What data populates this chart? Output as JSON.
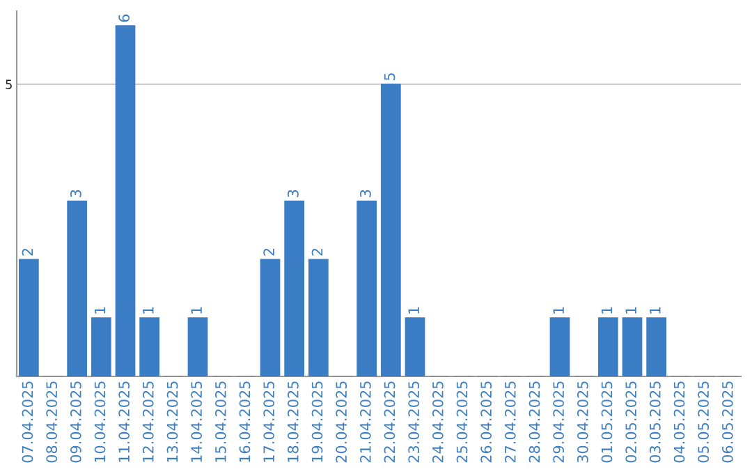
{
  "chart_data": {
    "type": "bar",
    "categories": [
      "07.04.2025",
      "08.04.2025",
      "09.04.2025",
      "10.04.2025",
      "11.04.2025",
      "12.04.2025",
      "13.04.2025",
      "14.04.2025",
      "15.04.2025",
      "16.04.2025",
      "17.04.2025",
      "18.04.2025",
      "19.04.2025",
      "20.04.2025",
      "21.04.2025",
      "22.04.2025",
      "23.04.2025",
      "24.04.2025",
      "25.04.2025",
      "26.04.2025",
      "27.04.2025",
      "28.04.2025",
      "29.04.2025",
      "30.04.2025",
      "01.05.2025",
      "02.05.2025",
      "03.05.2025",
      "04.05.2025",
      "05.05.2025",
      "06.05.2025"
    ],
    "values": [
      2,
      0,
      3,
      1,
      6,
      1,
      0,
      1,
      0,
      0,
      2,
      3,
      2,
      0,
      3,
      5,
      1,
      0,
      0,
      0,
      0,
      0,
      1,
      0,
      1,
      1,
      1,
      0,
      0,
      0
    ],
    "value_labels": [
      "2",
      null,
      "3",
      "1",
      "6",
      "1",
      null,
      "1",
      null,
      null,
      "2",
      "3",
      "2",
      null,
      "3",
      "5",
      "1",
      null,
      null,
      null,
      null,
      null,
      "1",
      null,
      "1",
      "1",
      "1",
      null,
      null,
      null
    ],
    "color": "#3b7dc4",
    "ylim": [
      0,
      6.25
    ],
    "yticks": [
      5
    ],
    "grid": "y"
  }
}
